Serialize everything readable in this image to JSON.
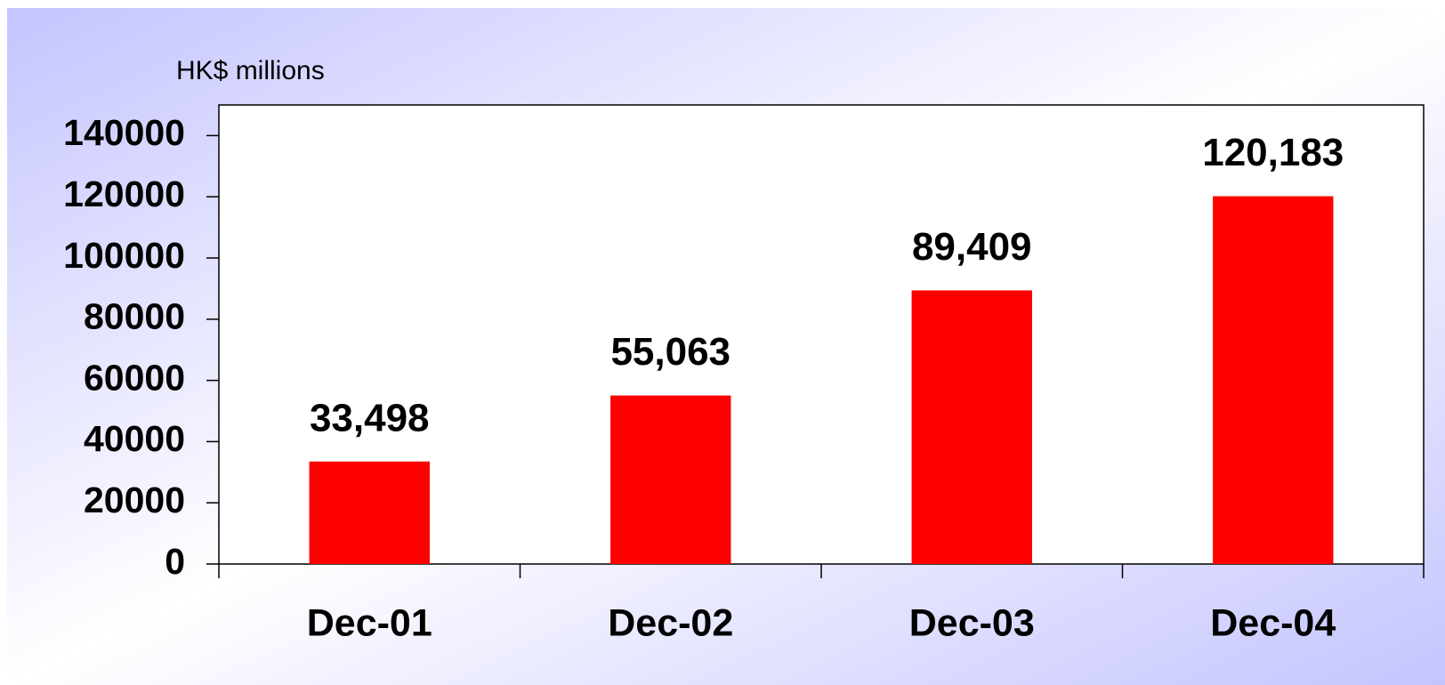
{
  "chart_data": {
    "type": "bar",
    "y_axis_label": "HK$ millions",
    "categories": [
      "Dec-01",
      "Dec-02",
      "Dec-03",
      "Dec-04"
    ],
    "values": [
      33498,
      55063,
      89409,
      120183
    ],
    "value_labels": [
      "33,498",
      "55,063",
      "89,409",
      "120,183"
    ],
    "color": "#ff0000",
    "ylim": [
      0,
      150000
    ],
    "yticks": [
      0,
      20000,
      40000,
      60000,
      80000,
      100000,
      120000,
      140000
    ],
    "grid": false
  }
}
